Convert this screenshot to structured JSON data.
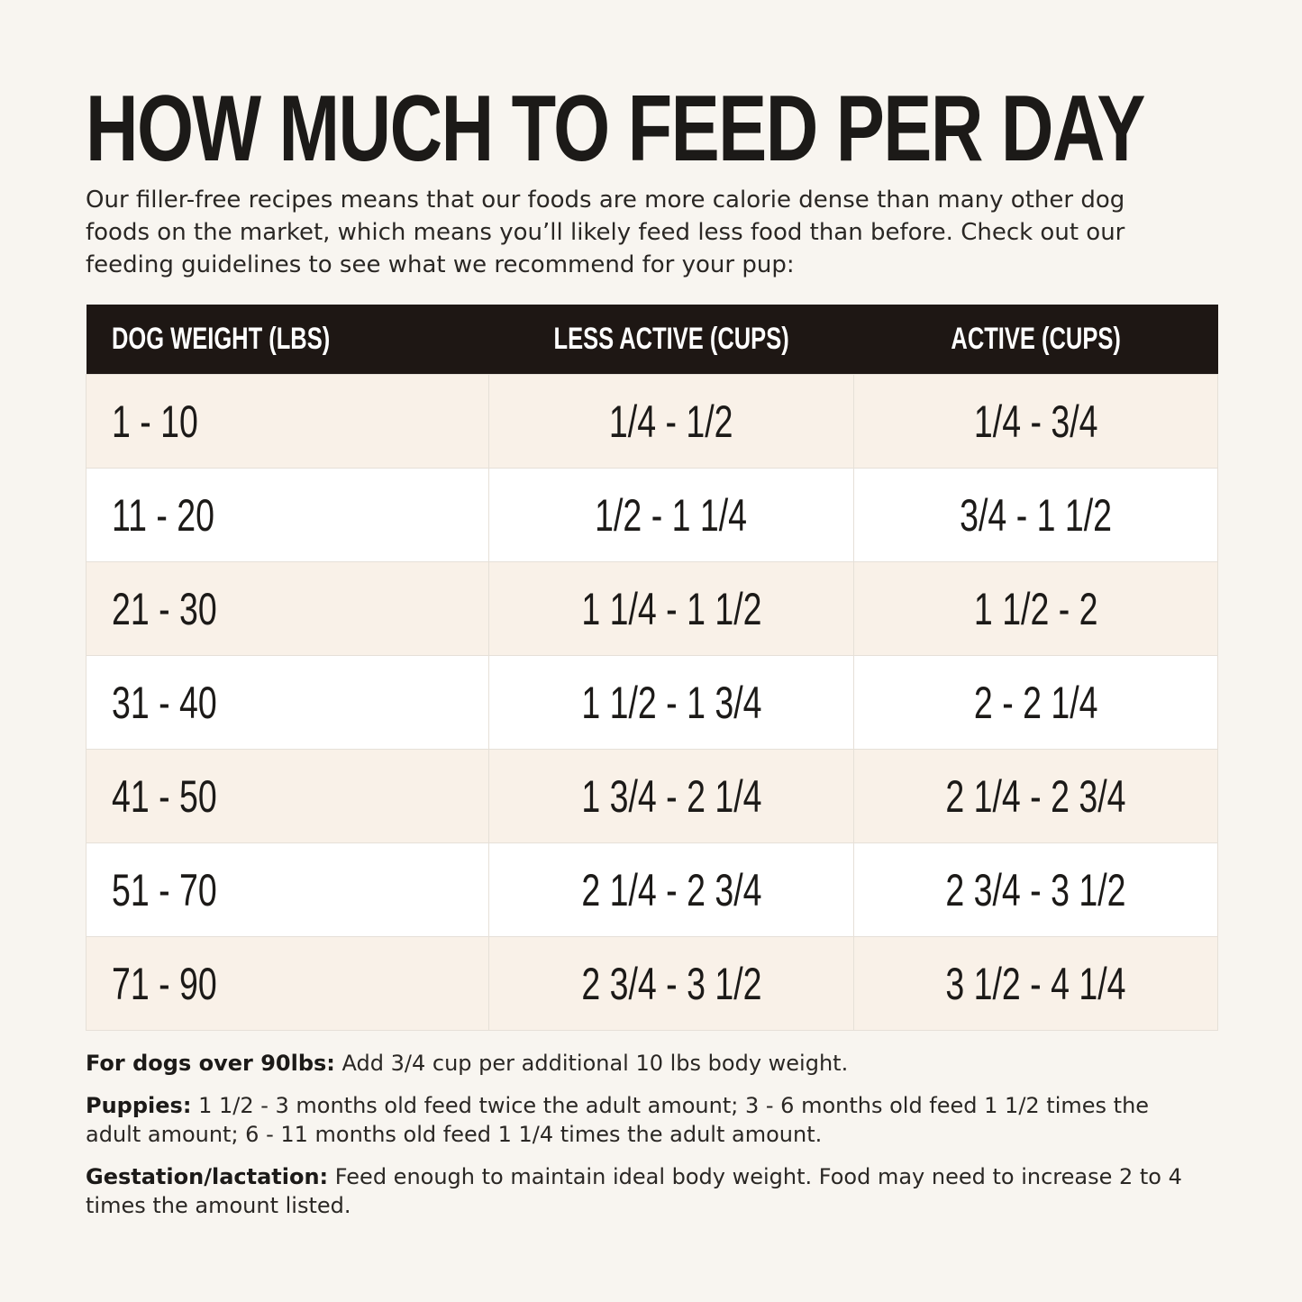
{
  "header": {
    "title": "HOW MUCH TO FEED PER DAY",
    "intro": "Our filler-free recipes means that our foods are more calorie dense than many other dog foods on the market, which means you’ll likely feed less food than before. Check out our feeding guidelines to see what we recommend for your pup:"
  },
  "table": {
    "columns": [
      "DOG WEIGHT (LBS)",
      "LESS ACTIVE (CUPS)",
      "ACTIVE (CUPS)"
    ],
    "rows": [
      [
        "1 - 10",
        "1/4 - 1/2",
        "1/4 - 3/4"
      ],
      [
        "11 - 20",
        "1/2 - 1 1/4",
        "3/4 - 1 1/2"
      ],
      [
        "21 - 30",
        "1 1/4 - 1 1/2",
        "1 1/2 - 2"
      ],
      [
        "31 - 40",
        "1 1/2 - 1 3/4",
        "2 - 2 1/4"
      ],
      [
        "41 - 50",
        "1 3/4 - 2 1/4",
        "2 1/4 - 2 3/4"
      ],
      [
        "51 - 70",
        "2 1/4 - 2 3/4",
        "2 3/4 - 3 1/2"
      ],
      [
        "71 - 90",
        "2 3/4 - 3 1/2",
        "3 1/2 - 4 1/4"
      ]
    ]
  },
  "notes": [
    {
      "label": "For dogs over 90lbs:",
      "text": "Add 3/4 cup per additional 10 lbs body weight."
    },
    {
      "label": "Puppies:",
      "text": "1 1/2 - 3 months old feed twice the adult amount; 3 - 6 months old feed 1 1/2 times the adult amount; 6 - 11 months old feed 1 1/4 times the adult amount."
    },
    {
      "label": "Gestation/lactation:",
      "text": "Feed enough to maintain ideal body weight. Food may need to increase 2 to 4 times the amount listed."
    }
  ]
}
